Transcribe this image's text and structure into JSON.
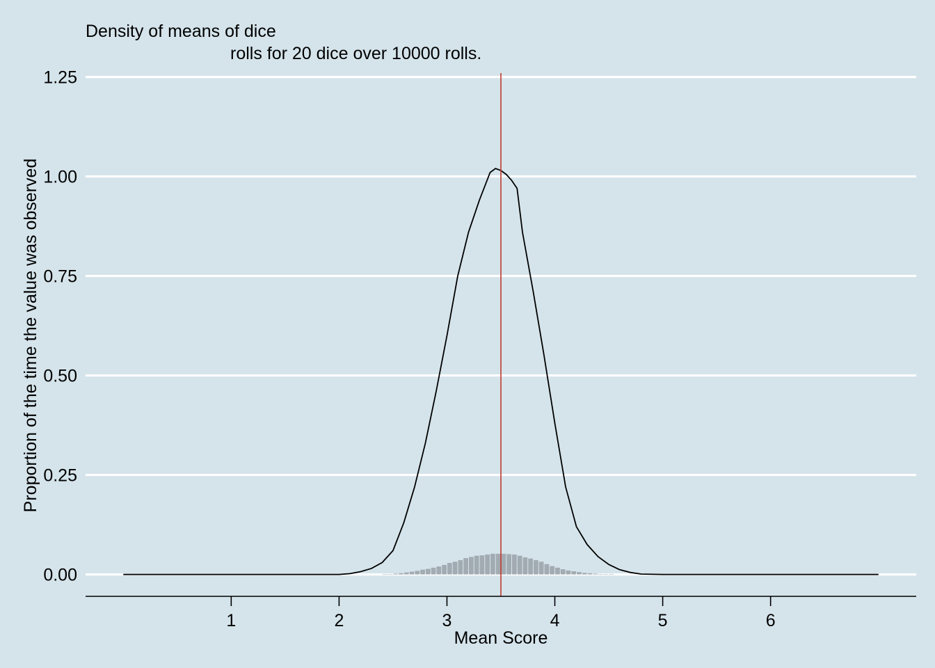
{
  "chart_data": {
    "type": "histogram+density",
    "title_line1": "Density of means of dice",
    "title_line2": "rolls for 20 dice over 10000 rolls.",
    "xlabel": "Mean Score",
    "ylabel": "Proportion of the time the value was observed",
    "xlim": [
      -0.35,
      7.35
    ],
    "ylim": [
      -0.055,
      1.3
    ],
    "x_ticks": [
      1,
      2,
      3,
      4,
      5,
      6
    ],
    "y_ticks": [
      0,
      0.25,
      0.5,
      0.75,
      1.0,
      1.25
    ],
    "y_tick_labels": [
      "0.00",
      "0.25",
      "0.50",
      "0.75",
      "1.00",
      "1.25"
    ],
    "grid": "horizontal",
    "mean_line": {
      "x": 3.5,
      "color": "#c0392b"
    },
    "density_curve": {
      "x": [
        0,
        2.0,
        2.1,
        2.2,
        2.3,
        2.4,
        2.5,
        2.6,
        2.7,
        2.8,
        2.9,
        3.0,
        3.1,
        3.2,
        3.3,
        3.4,
        3.45,
        3.5,
        3.55,
        3.6,
        3.65,
        3.7,
        3.8,
        3.9,
        4.0,
        4.1,
        4.2,
        4.3,
        4.4,
        4.5,
        4.6,
        4.7,
        4.8,
        5.0,
        7.0
      ],
      "y": [
        0,
        0,
        0.002,
        0.007,
        0.015,
        0.03,
        0.06,
        0.13,
        0.22,
        0.33,
        0.46,
        0.6,
        0.75,
        0.86,
        0.94,
        1.01,
        1.02,
        1.015,
        1.005,
        0.99,
        0.97,
        0.86,
        0.71,
        0.55,
        0.38,
        0.22,
        0.12,
        0.075,
        0.045,
        0.025,
        0.012,
        0.005,
        0.001,
        0,
        0
      ]
    },
    "histogram": {
      "bin_width": 0.05,
      "bins": [
        {
          "x": 2.4,
          "y": 0.001
        },
        {
          "x": 2.45,
          "y": 0.001
        },
        {
          "x": 2.5,
          "y": 0.002
        },
        {
          "x": 2.55,
          "y": 0.003
        },
        {
          "x": 2.6,
          "y": 0.005
        },
        {
          "x": 2.65,
          "y": 0.007
        },
        {
          "x": 2.7,
          "y": 0.009
        },
        {
          "x": 2.75,
          "y": 0.012
        },
        {
          "x": 2.8,
          "y": 0.014
        },
        {
          "x": 2.85,
          "y": 0.017
        },
        {
          "x": 2.9,
          "y": 0.02
        },
        {
          "x": 2.95,
          "y": 0.024
        },
        {
          "x": 3.0,
          "y": 0.029
        },
        {
          "x": 3.05,
          "y": 0.032
        },
        {
          "x": 3.1,
          "y": 0.036
        },
        {
          "x": 3.15,
          "y": 0.041
        },
        {
          "x": 3.2,
          "y": 0.044
        },
        {
          "x": 3.25,
          "y": 0.047
        },
        {
          "x": 3.3,
          "y": 0.048
        },
        {
          "x": 3.35,
          "y": 0.05
        },
        {
          "x": 3.4,
          "y": 0.052
        },
        {
          "x": 3.45,
          "y": 0.052
        },
        {
          "x": 3.5,
          "y": 0.052
        },
        {
          "x": 3.55,
          "y": 0.051
        },
        {
          "x": 3.6,
          "y": 0.05
        },
        {
          "x": 3.65,
          "y": 0.047
        },
        {
          "x": 3.7,
          "y": 0.043
        },
        {
          "x": 3.75,
          "y": 0.04
        },
        {
          "x": 3.8,
          "y": 0.036
        },
        {
          "x": 3.85,
          "y": 0.032
        },
        {
          "x": 3.9,
          "y": 0.026
        },
        {
          "x": 3.95,
          "y": 0.021
        },
        {
          "x": 4.0,
          "y": 0.017
        },
        {
          "x": 4.05,
          "y": 0.013
        },
        {
          "x": 4.1,
          "y": 0.01
        },
        {
          "x": 4.15,
          "y": 0.008
        },
        {
          "x": 4.2,
          "y": 0.006
        },
        {
          "x": 4.25,
          "y": 0.004
        },
        {
          "x": 4.3,
          "y": 0.003
        },
        {
          "x": 4.35,
          "y": 0.002
        },
        {
          "x": 4.4,
          "y": 0.001
        },
        {
          "x": 4.45,
          "y": 0.001
        },
        {
          "x": 4.5,
          "y": 0.001
        }
      ]
    },
    "colors": {
      "background": "#d5e4eb",
      "grid": "#ffffff",
      "bars": "#a3abb2",
      "curve": "#000000",
      "axis": "#000000"
    }
  }
}
